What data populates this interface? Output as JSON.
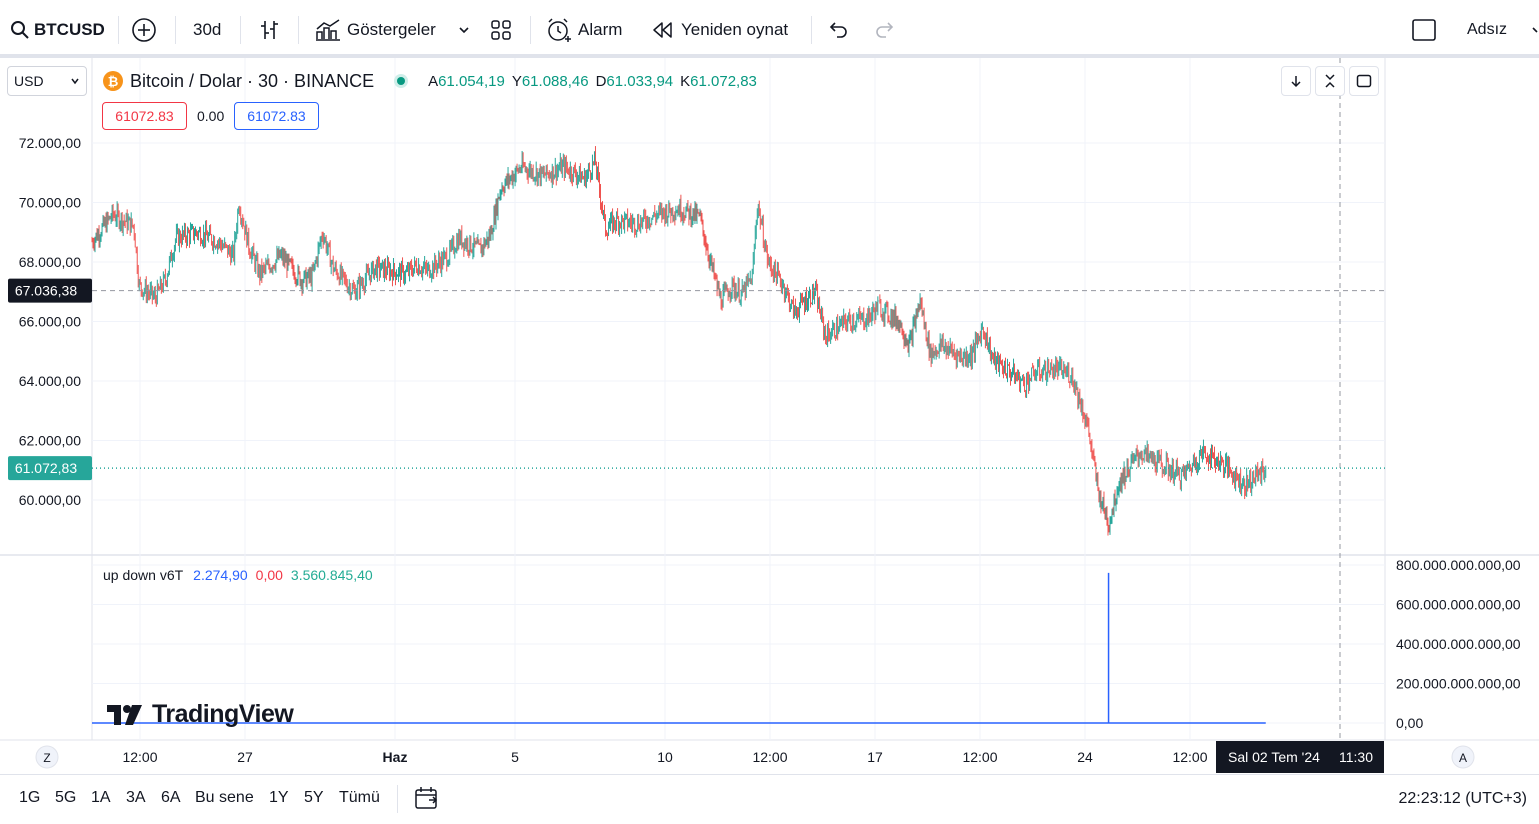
{
  "toolbar": {
    "symbol": "BTCUSD",
    "interval": "30d",
    "indicators_label": "Göstergeler",
    "alert_label": "Alarm",
    "replay_label": "Yeniden oynat",
    "layout_name": "Adsız"
  },
  "legend": {
    "currency_select": "USD",
    "title": "Bitcoin / Dolar · 30 · BINANCE",
    "open_label": "A",
    "open": "61.054,19",
    "high_label": "Y",
    "high": "61.088,46",
    "low_label": "D",
    "low": "61.033,94",
    "close_label": "K",
    "close": "61.072,83",
    "bid": "61072.83",
    "spread": "0.00",
    "ask": "61072.83"
  },
  "colors": {
    "up": "#26a69a",
    "down": "#ef5350",
    "accent": "#2962ff",
    "bitcoin": "#f7931a",
    "crosshair_label": "#131722"
  },
  "chart_data": [
    {
      "type": "candlestick",
      "ylim": [
        58000,
        73500
      ],
      "y_ticks": [
        "72.000,00",
        "70.000,00",
        "68.000,00",
        "66.000,00",
        "64.000,00",
        "62.000,00",
        "60.000,00"
      ],
      "y_tick_values": [
        72000,
        70000,
        68000,
        66000,
        64000,
        62000,
        60000
      ],
      "x_tick_labels": [
        "12:00",
        "27",
        "Haz",
        "5",
        "10",
        "12:00",
        "17",
        "12:00",
        "24",
        "12:00"
      ],
      "crosshair_price": "67.036,38",
      "crosshair_value": 67036.38,
      "last_price": "61.072,83",
      "last_value": 61072.83,
      "crosshair_time": "Sal 02 Tem '24",
      "crosshair_clock": "11:30",
      "path": [
        {
          "t": 0,
          "v": 68700
        },
        {
          "t": 0.02,
          "v": 69600
        },
        {
          "t": 0.04,
          "v": 69200
        },
        {
          "t": 0.045,
          "v": 67200
        },
        {
          "t": 0.06,
          "v": 66800
        },
        {
          "t": 0.07,
          "v": 67400
        },
        {
          "t": 0.08,
          "v": 68800
        },
        {
          "t": 0.1,
          "v": 69000
        },
        {
          "t": 0.12,
          "v": 68700
        },
        {
          "t": 0.135,
          "v": 68200
        },
        {
          "t": 0.14,
          "v": 70000
        },
        {
          "t": 0.15,
          "v": 68500
        },
        {
          "t": 0.16,
          "v": 67600
        },
        {
          "t": 0.18,
          "v": 68200
        },
        {
          "t": 0.2,
          "v": 67400
        },
        {
          "t": 0.21,
          "v": 67500
        },
        {
          "t": 0.22,
          "v": 69000
        },
        {
          "t": 0.23,
          "v": 67800
        },
        {
          "t": 0.25,
          "v": 67000
        },
        {
          "t": 0.27,
          "v": 67800
        },
        {
          "t": 0.3,
          "v": 67600
        },
        {
          "t": 0.31,
          "v": 67900
        },
        {
          "t": 0.32,
          "v": 67700
        },
        {
          "t": 0.34,
          "v": 68200
        },
        {
          "t": 0.35,
          "v": 68800
        },
        {
          "t": 0.37,
          "v": 68400
        },
        {
          "t": 0.38,
          "v": 68900
        },
        {
          "t": 0.39,
          "v": 70500
        },
        {
          "t": 0.41,
          "v": 71200
        },
        {
          "t": 0.43,
          "v": 70900
        },
        {
          "t": 0.45,
          "v": 71200
        },
        {
          "t": 0.47,
          "v": 70800
        },
        {
          "t": 0.48,
          "v": 71400
        },
        {
          "t": 0.49,
          "v": 69100
        },
        {
          "t": 0.5,
          "v": 69400
        },
        {
          "t": 0.52,
          "v": 69300
        },
        {
          "t": 0.54,
          "v": 69600
        },
        {
          "t": 0.56,
          "v": 69800
        },
        {
          "t": 0.58,
          "v": 69500
        },
        {
          "t": 0.59,
          "v": 68000
        },
        {
          "t": 0.6,
          "v": 66700
        },
        {
          "t": 0.61,
          "v": 67200
        },
        {
          "t": 0.62,
          "v": 66900
        },
        {
          "t": 0.63,
          "v": 67500
        },
        {
          "t": 0.635,
          "v": 70000
        },
        {
          "t": 0.645,
          "v": 68000
        },
        {
          "t": 0.66,
          "v": 67200
        },
        {
          "t": 0.67,
          "v": 66300
        },
        {
          "t": 0.68,
          "v": 66700
        },
        {
          "t": 0.69,
          "v": 67000
        },
        {
          "t": 0.7,
          "v": 65500
        },
        {
          "t": 0.72,
          "v": 66000
        },
        {
          "t": 0.74,
          "v": 66100
        },
        {
          "t": 0.75,
          "v": 66500
        },
        {
          "t": 0.77,
          "v": 66000
        },
        {
          "t": 0.78,
          "v": 65200
        },
        {
          "t": 0.79,
          "v": 66700
        },
        {
          "t": 0.8,
          "v": 64900
        },
        {
          "t": 0.81,
          "v": 65200
        },
        {
          "t": 0.83,
          "v": 64800
        },
        {
          "t": 0.84,
          "v": 64900
        },
        {
          "t": 0.85,
          "v": 65800
        },
        {
          "t": 0.86,
          "v": 64700
        },
        {
          "t": 0.88,
          "v": 64200
        },
        {
          "t": 0.89,
          "v": 63900
        },
        {
          "t": 0.9,
          "v": 64300
        },
        {
          "t": 0.92,
          "v": 64400
        },
        {
          "t": 0.935,
          "v": 64200
        },
        {
          "t": 0.95,
          "v": 62500
        },
        {
          "t": 0.96,
          "v": 60300
        },
        {
          "t": 0.97,
          "v": 59200
        },
        {
          "t": 0.98,
          "v": 60600
        },
        {
          "t": 1.0,
          "v": 61600
        },
        {
          "t": 1.02,
          "v": 61200
        },
        {
          "t": 1.04,
          "v": 60800
        },
        {
          "t": 1.06,
          "v": 61600
        },
        {
          "t": 1.08,
          "v": 61200
        },
        {
          "t": 1.1,
          "v": 60500
        },
        {
          "t": 1.12,
          "v": 61072
        }
      ]
    },
    {
      "type": "line",
      "name": "up down v6T",
      "values_shown": [
        "2.274,90",
        "0,00",
        "3.560.845,40"
      ],
      "ylim": [
        0,
        800000000000
      ],
      "y_ticks": [
        "800.000.000.000,00",
        "600.000.000.000,00",
        "400.000.000.000,00",
        "200.000.000.000,00",
        "0,00"
      ],
      "y_tick_values": [
        800000000000,
        600000000000,
        400000000000,
        200000000000,
        0
      ],
      "spike_value": 760000000000
    }
  ],
  "bottom": {
    "left_btn": "Z",
    "right_btn": "A",
    "ranges": [
      "1G",
      "5G",
      "1A",
      "3A",
      "6A",
      "Bu sene",
      "1Y",
      "5Y",
      "Tümü"
    ],
    "clock": "22:23:12 (UTC+3)"
  },
  "watermark": "TradingView"
}
